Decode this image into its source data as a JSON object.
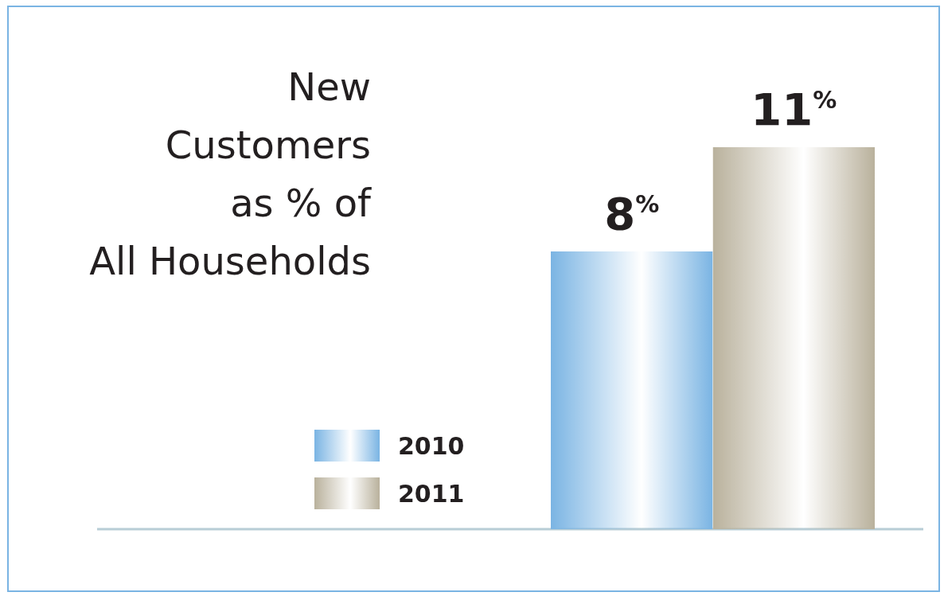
{
  "chart_data": {
    "type": "bar",
    "title": "New\nCustomers\nas % of\nAll Households",
    "categories": [
      null
    ],
    "series": [
      {
        "name": "2010",
        "color": "#7ab4e3",
        "values": [
          8
        ],
        "value_labels": [
          "8$^{%}$"
        ]
      },
      {
        "name": "2011",
        "color": "#b9b19c",
        "values": [
          11
        ],
        "value_labels": [
          "11$^{%}$"
        ]
      }
    ],
    "legend": "bottom left"
  }
}
